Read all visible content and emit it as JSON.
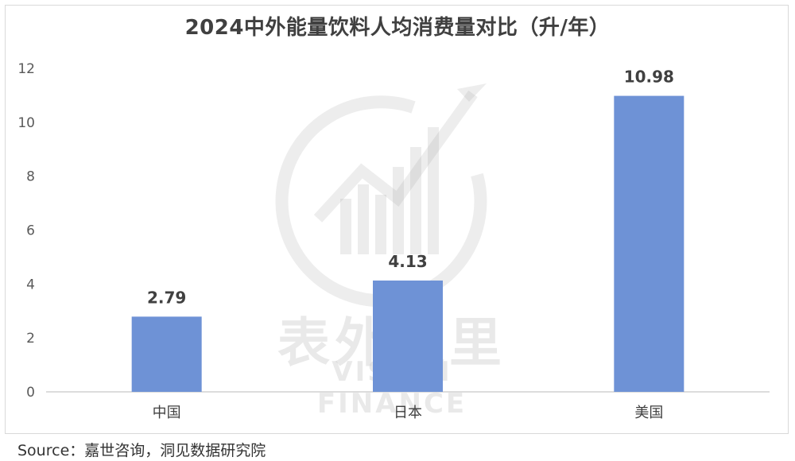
{
  "chart_data": {
    "type": "bar",
    "title": "2024中外能量饮料人均消费量对比（升/年）",
    "categories": [
      "中国",
      "日本",
      "美国"
    ],
    "values": [
      2.79,
      4.13,
      10.98
    ],
    "data_labels": [
      "2.79",
      "4.13",
      "10.98"
    ],
    "ylim": [
      0,
      12
    ],
    "yticks": [
      0,
      2,
      4,
      6,
      8,
      10,
      12
    ],
    "xlabel": "",
    "ylabel": "",
    "grid": false,
    "bar_color": "#6e92d6"
  },
  "watermark": {
    "cn": "表外表里",
    "en": "VISION FINANCE"
  },
  "source": "Source：嘉世咨询，洞见数据研究院"
}
